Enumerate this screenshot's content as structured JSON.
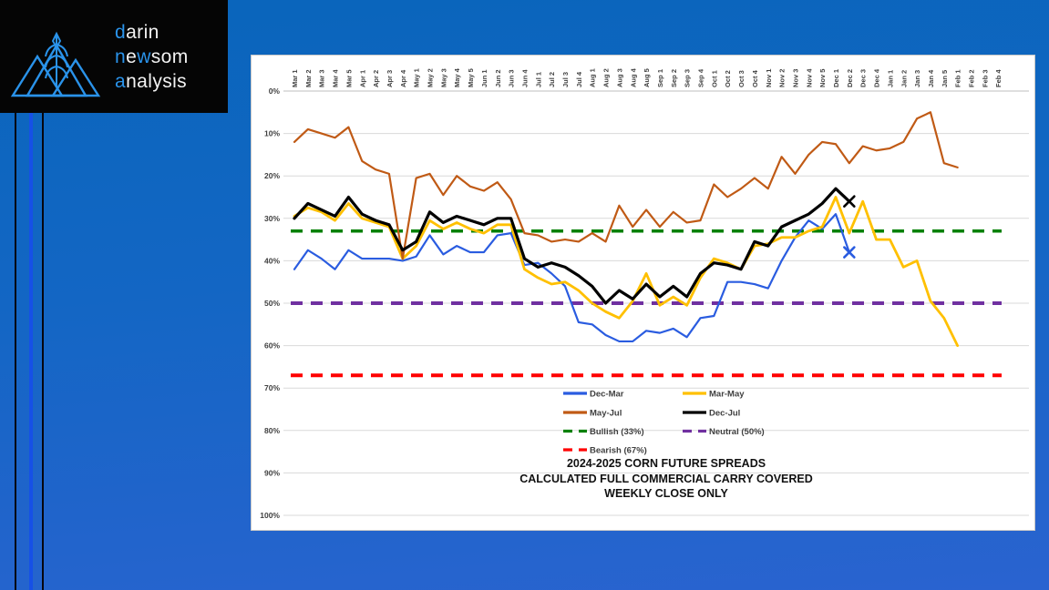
{
  "logo": {
    "d": "d",
    "arin": "arin",
    "n": "n",
    "e": "e",
    "w": "w",
    "som": "som",
    "a": "a",
    "nalysis": "nalysis",
    "icon": "mountains-wheat-logo",
    "accent_color": "#2a93ea"
  },
  "background": {
    "top_color": "#0965bb",
    "bottom_color": "#2a63d0"
  },
  "chart_data": {
    "type": "line",
    "title_lines": [
      "2024-2025 CORN FUTURE SPREADS",
      "CALCULATED FULL COMMERCIAL CARRY COVERED",
      "WEEKLY CLOSE ONLY"
    ],
    "y_axis": {
      "ticks": [
        "0%",
        "10%",
        "20%",
        "30%",
        "40%",
        "50%",
        "60%",
        "70%",
        "80%",
        "90%",
        "100%"
      ],
      "min": 0,
      "max": 100,
      "inverted": true,
      "grid": true
    },
    "x_axis_note": "weekly close, week of month, labels rotated 90deg at top",
    "categories": [
      "Mar 1",
      "Mar 2",
      "Mar 3",
      "Mar 4",
      "Mar 5",
      "Apr 1",
      "Apr 2",
      "Apr 3",
      "Apr 4",
      "May 1",
      "May 2",
      "May 3",
      "May 4",
      "May 5",
      "Jun 1",
      "Jun 2",
      "Jun 3",
      "Jun 4",
      "Jul 1",
      "Jul 2",
      "Jul 3",
      "Jul 4",
      "Aug 1",
      "Aug 2",
      "Aug 3",
      "Aug 4",
      "Aug 5",
      "Sep 1",
      "Sep 2",
      "Sep 3",
      "Sep 4",
      "Oct 1",
      "Oct 2",
      "Oct 3",
      "Oct 4",
      "Nov 1",
      "Nov 2",
      "Nov 3",
      "Nov 4",
      "Nov 5",
      "Dec 1",
      "Dec 2",
      "Dec 3",
      "Dec 4",
      "Jan 1",
      "Jan 2",
      "Jan 3",
      "Jan 4",
      "Jan 5",
      "Feb 1",
      "Feb 2",
      "Feb 3",
      "Feb 4"
    ],
    "series": [
      {
        "name": "Dec-Mar",
        "color": "#2a5ce0",
        "width": 2.2,
        "values": [
          42,
          37.5,
          39.5,
          42,
          37.5,
          39.5,
          39.5,
          39.5,
          40,
          39,
          34,
          38.5,
          36.5,
          38,
          38,
          34,
          33.5,
          41,
          40.5,
          43,
          46,
          54.5,
          55,
          57.5,
          59,
          59,
          56.5,
          57,
          56,
          58,
          53.5,
          53,
          45,
          45,
          45.5,
          46.5,
          40,
          34.5,
          30.5,
          32.5,
          29,
          38,
          null,
          null,
          null,
          null,
          null,
          null,
          null,
          null,
          null,
          null,
          null
        ]
      },
      {
        "name": "Mar-May",
        "color": "#ffc000",
        "width": 2.8,
        "values": [
          29.5,
          27.5,
          28.5,
          30.5,
          26.5,
          30,
          31,
          32,
          39.5,
          36.5,
          30.5,
          32.5,
          31,
          32.5,
          33.5,
          31.5,
          31.5,
          42,
          44,
          45.5,
          45,
          47,
          50,
          52,
          53.5,
          49.5,
          43,
          50.5,
          48.5,
          50.5,
          44,
          39.5,
          40.5,
          42,
          36.5,
          36,
          34.5,
          34.5,
          33,
          32,
          25,
          33.5,
          26,
          35,
          35,
          41.5,
          40,
          49.5,
          53.5,
          60,
          null,
          null,
          null
        ]
      },
      {
        "name": "May-Jul",
        "color": "#c05a15",
        "width": 2.2,
        "values": [
          12,
          9,
          10,
          11,
          8.5,
          16.5,
          18.5,
          19.5,
          39.5,
          20.5,
          19.5,
          24.5,
          20,
          22.5,
          23.5,
          21.5,
          25.5,
          33.5,
          34,
          35.5,
          35,
          35.5,
          33.5,
          35.5,
          27,
          32,
          28,
          32,
          28.5,
          31,
          30.5,
          22,
          25,
          23,
          20.5,
          23,
          15.5,
          19.5,
          15,
          12,
          12.5,
          17,
          13,
          14,
          13.5,
          12,
          6.5,
          5,
          17,
          18,
          null,
          null,
          null
        ]
      },
      {
        "name": "Dec-Jul",
        "color": "#000000",
        "width": 3.2,
        "values": [
          30,
          26.5,
          28,
          29.5,
          25,
          29,
          30.5,
          31.5,
          37.5,
          35.5,
          28.5,
          31,
          29.5,
          30.5,
          31.5,
          30,
          30,
          39.5,
          41.5,
          40.5,
          41.5,
          43.5,
          46,
          50,
          47,
          49,
          45.5,
          48.5,
          46,
          48.5,
          43,
          40.5,
          41,
          42,
          35.5,
          36.5,
          32,
          30.5,
          29,
          26.5,
          23,
          26,
          null,
          null,
          null,
          null,
          null,
          null,
          null,
          null,
          null,
          null,
          null
        ]
      }
    ],
    "reference_lines": [
      {
        "name": "Bullish (33%)",
        "value": 33,
        "color": "#008000",
        "width": 3.5
      },
      {
        "name": "Neutral (50%)",
        "value": 50,
        "color": "#7030a0",
        "width": 4
      },
      {
        "name": "Bearish (67%)",
        "value": 67,
        "color": "#ff0000",
        "width": 4
      }
    ],
    "end_markers": [
      {
        "series": "Dec-Jul",
        "category": "Dec 2",
        "index": 41,
        "value": 26,
        "shape": "x",
        "color": "#000000"
      },
      {
        "series": "Dec-Mar",
        "category": "Dec 2",
        "index": 41,
        "value": 38,
        "shape": "x",
        "color": "#2a5ce0"
      }
    ],
    "legend_items": [
      {
        "label": "Dec-Mar",
        "color": "#2a5ce0",
        "dashed": false
      },
      {
        "label": "Mar-May",
        "color": "#ffc000",
        "dashed": false
      },
      {
        "label": "May-Jul",
        "color": "#c05a15",
        "dashed": false
      },
      {
        "label": "Dec-Jul",
        "color": "#000000",
        "dashed": false
      },
      {
        "label": "Bullish (33%)",
        "color": "#008000",
        "dashed": true
      },
      {
        "label": "Neutral (50%)",
        "color": "#7030a0",
        "dashed": true
      },
      {
        "label": "Bearish (67%)",
        "color": "#ff0000",
        "dashed": true
      }
    ],
    "legend_position": "inside-bottom-center"
  }
}
